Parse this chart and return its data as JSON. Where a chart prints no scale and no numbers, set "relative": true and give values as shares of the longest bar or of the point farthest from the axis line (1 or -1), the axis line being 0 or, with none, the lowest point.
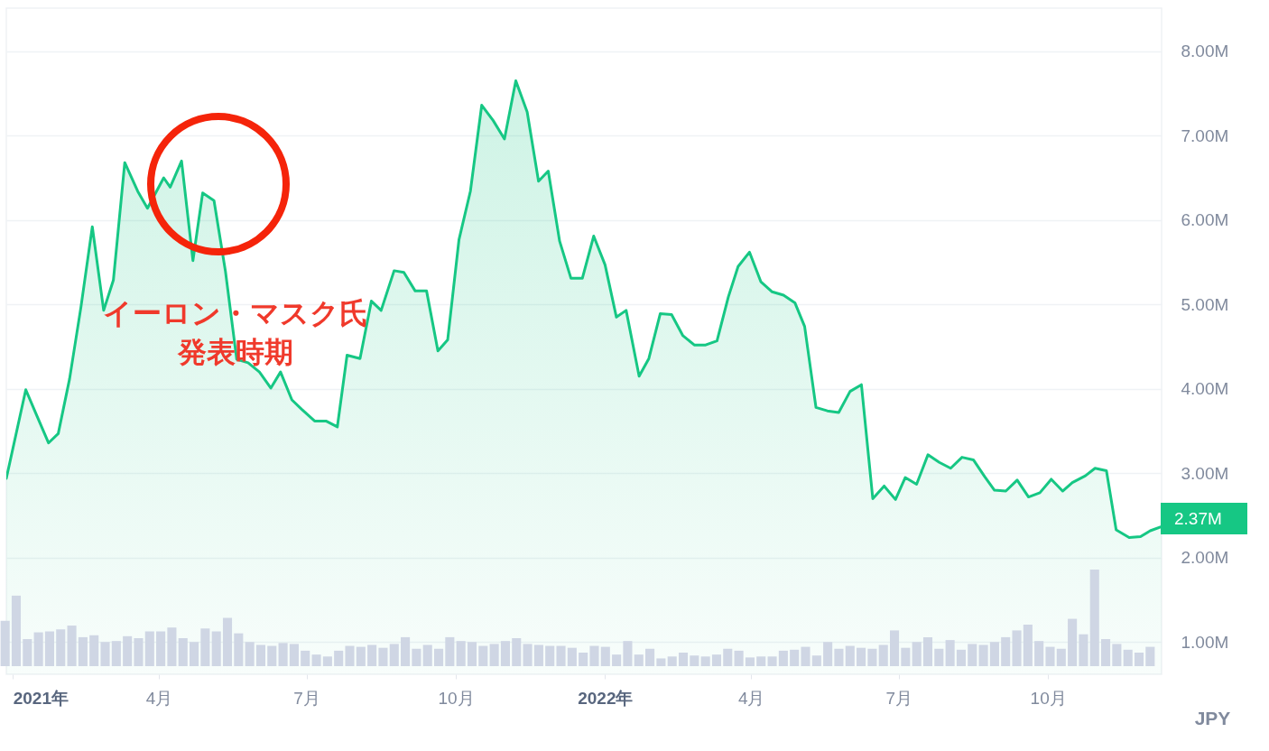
{
  "chart_data": [
    {
      "type": "area",
      "x": [
        "2020-12-28",
        "2021-01-09",
        "2021-01-15",
        "2021-01-23",
        "2021-01-29",
        "2021-02-05",
        "2021-02-12",
        "2021-02-19",
        "2021-02-26",
        "2021-03-04",
        "2021-03-11",
        "2021-03-19",
        "2021-03-25",
        "2021-04-04",
        "2021-04-08",
        "2021-04-15",
        "2021-04-22",
        "2021-04-28",
        "2021-05-05",
        "2021-05-12",
        "2021-05-19",
        "2021-05-26",
        "2021-06-02",
        "2021-06-09",
        "2021-06-15",
        "2021-06-22",
        "2021-06-28",
        "2021-07-06",
        "2021-07-13",
        "2021-07-20",
        "2021-07-26",
        "2021-08-03",
        "2021-08-10",
        "2021-08-16",
        "2021-08-24",
        "2021-08-30",
        "2021-09-06",
        "2021-09-13",
        "2021-09-20",
        "2021-09-26",
        "2021-10-03",
        "2021-10-10",
        "2021-10-17",
        "2021-10-24",
        "2021-10-31",
        "2021-11-07",
        "2021-11-14",
        "2021-11-21",
        "2021-11-27",
        "2021-12-04",
        "2021-12-11",
        "2021-12-18",
        "2021-12-25",
        "2022-01-01",
        "2022-01-08",
        "2022-01-14",
        "2022-01-22",
        "2022-01-28",
        "2022-02-04",
        "2022-02-11",
        "2022-02-18",
        "2022-02-25",
        "2022-03-04",
        "2022-03-11",
        "2022-03-18",
        "2022-03-24",
        "2022-03-31",
        "2022-04-07",
        "2022-04-14",
        "2022-04-21",
        "2022-04-28",
        "2022-05-04",
        "2022-05-11",
        "2022-05-18",
        "2022-05-25",
        "2022-06-01",
        "2022-06-08",
        "2022-06-15",
        "2022-06-22",
        "2022-06-29",
        "2022-07-05",
        "2022-07-12",
        "2022-07-19",
        "2022-07-26",
        "2022-08-02",
        "2022-08-09",
        "2022-08-16",
        "2022-08-23",
        "2022-08-29",
        "2022-09-05",
        "2022-09-12",
        "2022-09-19",
        "2022-09-26",
        "2022-10-03",
        "2022-10-10",
        "2022-10-16",
        "2022-10-24",
        "2022-10-30",
        "2022-11-06",
        "2022-11-12",
        "2022-11-20",
        "2022-11-27",
        "2022-12-03",
        "2022-12-10"
      ],
      "series": [
        {
          "color": "#16c784",
          "values": [
            2940000,
            3990000,
            3720000,
            3360000,
            3470000,
            4120000,
            4970000,
            5920000,
            4930000,
            5290000,
            6680000,
            6340000,
            6140000,
            6500000,
            6390000,
            6700000,
            5520000,
            6320000,
            6230000,
            5400000,
            4350000,
            4310000,
            4200000,
            4010000,
            4200000,
            3870000,
            3760000,
            3620000,
            3620000,
            3550000,
            4400000,
            4360000,
            5040000,
            4930000,
            5400000,
            5380000,
            5160000,
            5160000,
            4450000,
            4580000,
            5770000,
            6340000,
            7360000,
            7180000,
            6960000,
            7650000,
            7280000,
            6460000,
            6580000,
            5750000,
            5310000,
            5310000,
            5810000,
            5470000,
            4850000,
            4930000,
            4150000,
            4360000,
            4890000,
            4880000,
            4630000,
            4520000,
            4520000,
            4570000,
            5090000,
            5450000,
            5620000,
            5270000,
            5150000,
            5110000,
            5020000,
            4740000,
            3780000,
            3740000,
            3720000,
            3970000,
            4050000,
            2700000,
            2850000,
            2690000,
            2950000,
            2870000,
            3220000,
            3130000,
            3060000,
            3190000,
            3160000,
            2960000,
            2800000,
            2790000,
            2920000,
            2720000,
            2770000,
            2930000,
            2790000,
            2890000,
            2970000,
            3060000,
            3030000,
            2330000,
            2240000,
            2250000,
            2320000,
            2370000
          ]
        }
      ],
      "xlim": [
        "2020-12-28",
        "2022-12-10"
      ],
      "xticks": [
        {
          "value": "2021-01-01",
          "label": "2021年"
        },
        {
          "value": "2021-04-01",
          "label": "4月"
        },
        {
          "value": "2021-07-01",
          "label": "7月"
        },
        {
          "value": "2021-10-01",
          "label": "10月"
        },
        {
          "value": "2022-01-01",
          "label": "2022年"
        },
        {
          "value": "2022-04-01",
          "label": "4月"
        },
        {
          "value": "2022-07-01",
          "label": "7月"
        },
        {
          "value": "2022-10-01",
          "label": "10月"
        }
      ],
      "ylim": [
        620000,
        8510000
      ],
      "yticks": [
        {
          "value": 1000000,
          "label": "1.00M"
        },
        {
          "value": 2000000,
          "label": "2.00M"
        },
        {
          "value": 3000000,
          "label": "3.00M"
        },
        {
          "value": 4000000,
          "label": "4.00M"
        },
        {
          "value": 5000000,
          "label": "5.00M"
        },
        {
          "value": 6000000,
          "label": "6.00M"
        },
        {
          "value": 7000000,
          "label": "7.00M"
        },
        {
          "value": 8000000,
          "label": "8.00M"
        }
      ],
      "ylabel": "JPY",
      "grid": "y",
      "annotations": [
        "イーロン・マスク氏発表時期",
        {
          "text": "2.37M",
          "x": "2022-12-10",
          "y": 2370000
        }
      ]
    },
    {
      "type": "bar",
      "relative": true,
      "color": "#cfd6e4",
      "categories": [
        null,
        null,
        null,
        null,
        null,
        null,
        null,
        null,
        null,
        null,
        null,
        null,
        null,
        null,
        null,
        null,
        null,
        null,
        null,
        null,
        null,
        null,
        null,
        null,
        null,
        null,
        null,
        null,
        null,
        null,
        null,
        null,
        null,
        null,
        null,
        null,
        null,
        null,
        null,
        null,
        null,
        null,
        null,
        null,
        null,
        null,
        null,
        null,
        null,
        null,
        null,
        null,
        null,
        null,
        null,
        null,
        null,
        null,
        null,
        null,
        null,
        null,
        null,
        null,
        null,
        null,
        null,
        null,
        null,
        null,
        null,
        null,
        null,
        null,
        null,
        null,
        null,
        null,
        null,
        null,
        null,
        null,
        null,
        null,
        null,
        null,
        null,
        null,
        null,
        null,
        null,
        null,
        null,
        null,
        null,
        null,
        null,
        null,
        null,
        null,
        null,
        null,
        null,
        null
      ],
      "values": [
        0.47,
        0.73,
        0.28,
        0.35,
        0.36,
        0.38,
        0.42,
        0.3,
        0.32,
        0.25,
        0.26,
        0.31,
        0.29,
        0.36,
        0.36,
        0.4,
        0.29,
        0.25,
        0.39,
        0.36,
        0.5,
        0.34,
        0.25,
        0.22,
        0.21,
        0.24,
        0.23,
        0.16,
        0.12,
        0.1,
        0.16,
        0.21,
        0.2,
        0.22,
        0.19,
        0.23,
        0.3,
        0.18,
        0.22,
        0.18,
        0.3,
        0.26,
        0.25,
        0.21,
        0.23,
        0.26,
        0.29,
        0.23,
        0.22,
        0.21,
        0.21,
        0.19,
        0.14,
        0.21,
        0.2,
        0.12,
        0.26,
        0.12,
        0.18,
        0.08,
        0.1,
        0.14,
        0.11,
        0.1,
        0.12,
        0.18,
        0.16,
        0.09,
        0.1,
        0.1,
        0.16,
        0.17,
        0.2,
        0.11,
        0.25,
        0.18,
        0.21,
        0.19,
        0.18,
        0.22,
        0.37,
        0.19,
        0.25,
        0.3,
        0.18,
        0.27,
        0.17,
        0.23,
        0.22,
        0.25,
        0.3,
        0.37,
        0.43,
        0.26,
        0.2,
        0.18,
        0.49,
        0.33,
        1,
        0.28,
        0.23,
        0.17,
        0.14,
        0.2
      ]
    }
  ]
}
